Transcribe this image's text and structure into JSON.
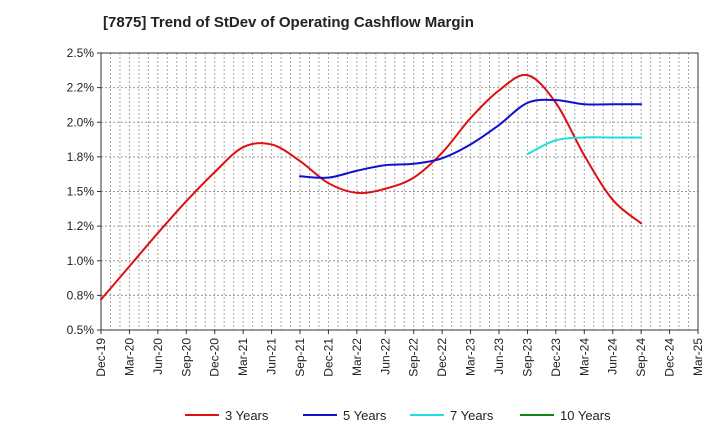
{
  "chart_data": {
    "type": "line",
    "title": "[7875]  Trend of StDev of Operating Cashflow Margin",
    "xlabel": "",
    "ylabel": "",
    "ylim": [
      0.5,
      2.5
    ],
    "y_ticks": [
      "0.5%",
      "0.8%",
      "1.0%",
      "1.2%",
      "1.5%",
      "1.8%",
      "2.0%",
      "2.2%",
      "2.5%"
    ],
    "y_tick_values": [
      0.5,
      0.75,
      1.0,
      1.25,
      1.5,
      1.75,
      2.0,
      2.25,
      2.5
    ],
    "categories": [
      "Dec-19",
      "Mar-20",
      "Jun-20",
      "Sep-20",
      "Dec-20",
      "Mar-21",
      "Jun-21",
      "Sep-21",
      "Dec-21",
      "Mar-22",
      "Jun-22",
      "Sep-22",
      "Dec-22",
      "Mar-23",
      "Jun-23",
      "Sep-23",
      "Dec-23",
      "Mar-24",
      "Jun-24",
      "Sep-24",
      "Dec-24",
      "Mar-25"
    ],
    "grid": true,
    "legend_position": "bottom",
    "series": [
      {
        "name": "3 Years",
        "color": "#dd1111",
        "values": [
          0.72,
          0.96,
          1.2,
          1.43,
          1.64,
          1.82,
          1.84,
          1.72,
          1.56,
          1.49,
          1.52,
          1.6,
          1.78,
          2.03,
          2.23,
          2.34,
          2.14,
          1.76,
          1.44,
          1.27,
          null,
          null
        ]
      },
      {
        "name": "5 Years",
        "color": "#1111cc",
        "values": [
          null,
          null,
          null,
          null,
          null,
          null,
          null,
          1.61,
          1.6,
          1.65,
          1.69,
          1.7,
          1.74,
          1.84,
          1.98,
          2.14,
          2.16,
          2.13,
          2.13,
          2.13,
          null,
          null
        ]
      },
      {
        "name": "7 Years",
        "color": "#22dddd",
        "values": [
          null,
          null,
          null,
          null,
          null,
          null,
          null,
          null,
          null,
          null,
          null,
          null,
          null,
          null,
          null,
          1.77,
          1.87,
          1.89,
          1.89,
          1.89,
          null,
          null
        ]
      },
      {
        "name": "10 Years",
        "color": "#118811",
        "values": [
          null,
          null,
          null,
          null,
          null,
          null,
          null,
          null,
          null,
          null,
          null,
          null,
          null,
          null,
          null,
          null,
          null,
          null,
          null,
          null,
          null,
          null
        ]
      }
    ]
  }
}
